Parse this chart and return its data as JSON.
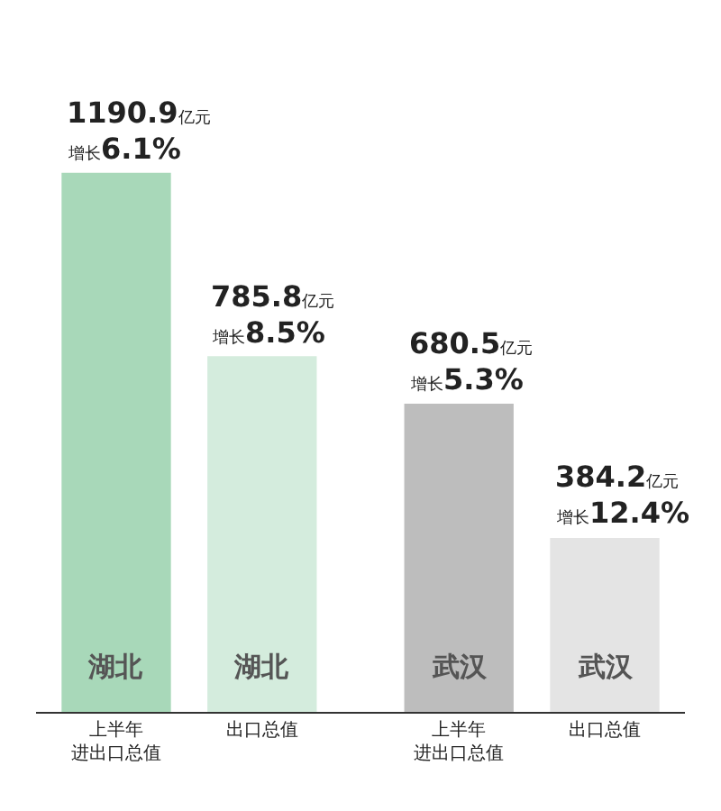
{
  "chart_data": {
    "type": "bar",
    "categories": [
      "上半年进出口总值",
      "出口总值",
      "上半年进出口总值",
      "出口总值"
    ],
    "values": [
      1190.9,
      785.8,
      680.5,
      384.2
    ],
    "colors": [
      "#a8d8b9",
      "#d4ecdd",
      "#bdbdbd",
      "#e4e4e4"
    ],
    "value_labels": [
      "1190.9亿元",
      "785.8亿元",
      "680.5亿元",
      "384.2亿元"
    ],
    "annotations": [
      "湖北",
      "湖北",
      "武汉",
      "武汉",
      "增长6.1%",
      "增长8.5%",
      "增长5.3%",
      "增长12.4%"
    ],
    "tick_labels": "x"
  }
}
